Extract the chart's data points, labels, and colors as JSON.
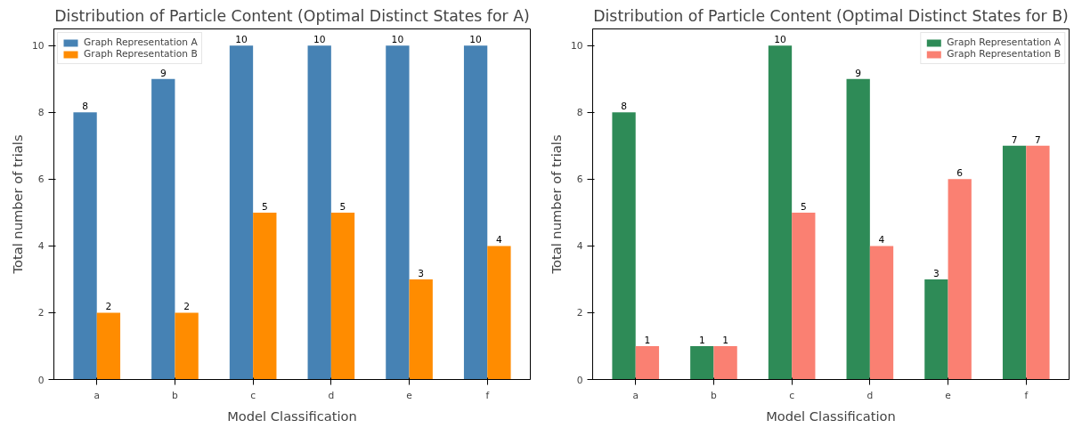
{
  "chart_data": [
    {
      "type": "bar",
      "title": "Distribution of Particle Content (Optimal Distinct States for A)",
      "xlabel": "Model Classification",
      "ylabel": "Total number of trials",
      "categories": [
        "a",
        "b",
        "c",
        "d",
        "e",
        "f"
      ],
      "series": [
        {
          "name": "Graph Representation A",
          "color": "#4682b4",
          "values": [
            8,
            9,
            10,
            10,
            10,
            10
          ]
        },
        {
          "name": "Graph Representation B",
          "color": "#ff8c00",
          "values": [
            2,
            2,
            5,
            5,
            3,
            4
          ]
        }
      ],
      "ylim": [
        0,
        10.5
      ],
      "yticks": [
        0,
        2,
        4,
        6,
        8,
        10
      ],
      "data_labels": true,
      "legend": "top left",
      "grid": false
    },
    {
      "type": "bar",
      "title": "Distribution of Particle Content (Optimal Distinct States for B)",
      "xlabel": "Model Classification",
      "ylabel": "Total number of trials",
      "categories": [
        "a",
        "b",
        "c",
        "d",
        "e",
        "f"
      ],
      "series": [
        {
          "name": "Graph Representation A",
          "color": "#2e8b57",
          "values": [
            8,
            1,
            10,
            9,
            3,
            7
          ]
        },
        {
          "name": "Graph Representation B",
          "color": "#fa8072",
          "values": [
            1,
            1,
            5,
            4,
            6,
            7
          ]
        }
      ],
      "ylim": [
        0,
        10.5
      ],
      "yticks": [
        0,
        2,
        4,
        6,
        8,
        10
      ],
      "data_labels": true,
      "legend": "top right",
      "grid": false
    }
  ]
}
